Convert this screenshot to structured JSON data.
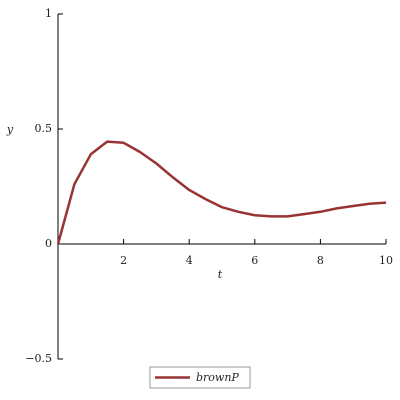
{
  "chart_data": {
    "type": "line",
    "xlabel": "t",
    "ylabel": "y",
    "x": [
      0,
      0.5,
      1,
      1.5,
      2,
      2.5,
      3,
      3.5,
      4,
      4.5,
      5,
      5.5,
      6,
      6.5,
      7,
      7.5,
      8,
      8.5,
      9,
      9.5,
      10
    ],
    "series": [
      {
        "name": "brownP",
        "color": "#993333",
        "values": [
          0,
          0.26,
          0.39,
          0.445,
          0.44,
          0.4,
          0.35,
          0.29,
          0.235,
          0.195,
          0.16,
          0.14,
          0.125,
          0.12,
          0.12,
          0.13,
          0.14,
          0.155,
          0.165,
          0.175,
          0.18
        ]
      }
    ],
    "xlim": [
      0,
      10
    ],
    "ylim": [
      -0.5,
      1
    ],
    "xticks": [
      2,
      4,
      6,
      8,
      10
    ],
    "yticks": [
      {
        "value": -0.5,
        "label": "−0.5"
      },
      0,
      0.5,
      1
    ]
  }
}
